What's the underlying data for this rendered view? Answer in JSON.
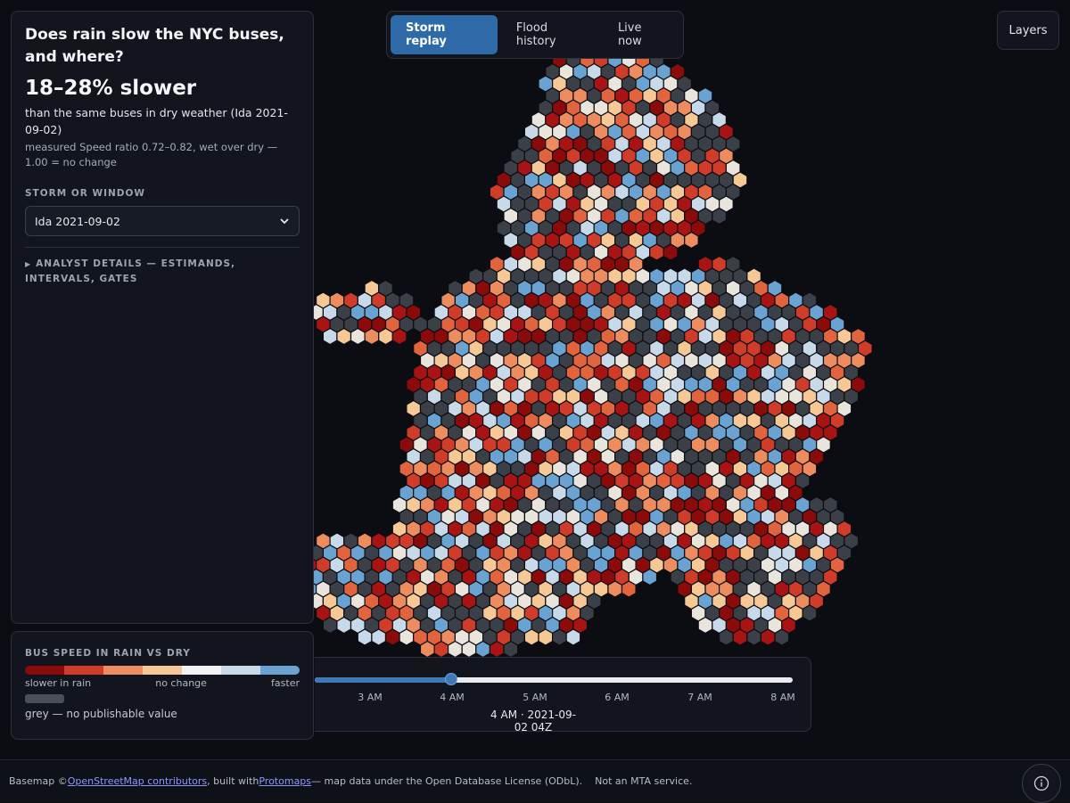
{
  "panel": {
    "title": "Does rain slow the NYC buses, and where?",
    "headline": "18–28% slower",
    "subline": "than the same buses in dry weather (Ida 2021-09-02)",
    "measured": "measured Speed ratio 0.72–0.82, wet over dry — 1.00 = no change",
    "storm_label": "STORM OR WINDOW",
    "storm_value": "Ida 2021-09-02",
    "details_label": "ANALYST DETAILS — ESTIMANDS, INTERVALS, GATES"
  },
  "tabs": [
    {
      "label": "Storm replay",
      "active": true
    },
    {
      "label": "Flood history",
      "active": false
    },
    {
      "label": "Live now",
      "active": false
    }
  ],
  "layers_label": "Layers",
  "legend": {
    "title": "BUS SPEED IN RAIN VS DRY",
    "ramp_colors": [
      "#8b0a0a",
      "#cf3d2a",
      "#ec8c5f",
      "#f5c896",
      "#f2f2f2",
      "#c8d9ea",
      "#6aa3d2"
    ],
    "slower_label": "slower in rain",
    "nochange_label": "no change",
    "faster_label": "faster",
    "grey_color": "#4a4f58",
    "grey_label": "grey — no publishable value"
  },
  "timeline": {
    "ticks": [
      "3 AM",
      "4 AM",
      "5 AM",
      "6 AM",
      "7 AM",
      "8 AM"
    ],
    "progress": 0.285,
    "current": "4 AM · 2021-09-02 04Z"
  },
  "footer": {
    "prefix": "Basemap © ",
    "link1": "OpenStreetMap contributors",
    "mid": ", built with ",
    "link2": "Protomaps",
    "suffix": " — map data under the Open Database License (ODbL).",
    "notice": "Not an MTA service."
  },
  "icons": {
    "info": "info-icon",
    "chevron": "chevron-down-icon",
    "disclosure": "disclosure-triangle-icon"
  }
}
